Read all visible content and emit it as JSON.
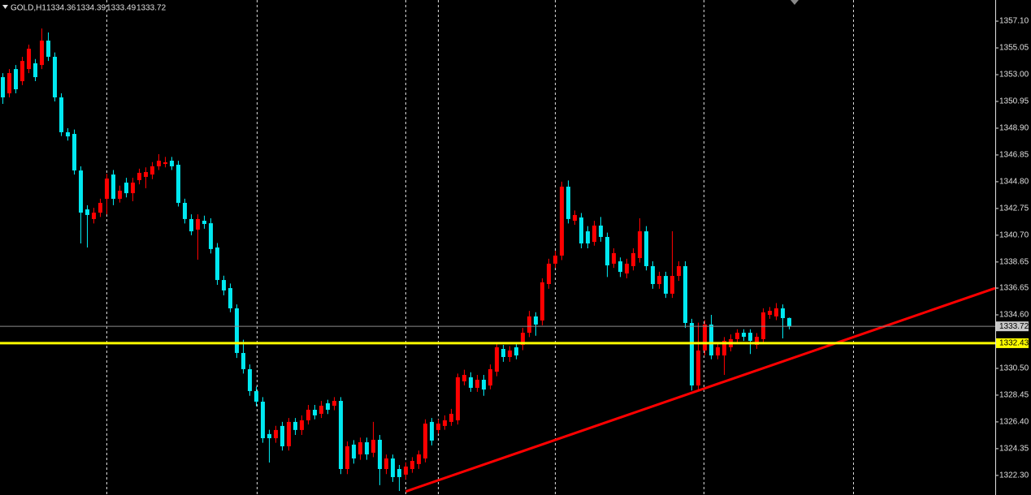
{
  "chart_data": {
    "type": "candlestick",
    "symbol": "GOLD,H1",
    "open": [
      1352.81,
      1351.57,
      1353.43,
      1352.5,
      1353.43,
      1353.87,
      1353.74,
      1355.61,
      1354.37,
      1351.26,
      1348.59,
      1348.46,
      1345.66,
      1342.68,
      1341.94,
      1342.43,
      1343.49,
      1345.35,
      1343.49,
      1344.73,
      1343.92,
      1344.92,
      1345.17,
      1345.35,
      1345.98,
      1346.16,
      1346.41,
      1346.1,
      1343.18,
      1341.94,
      1341.13,
      1341.81,
      1341.62,
      1339.76,
      1337.27,
      1336.65,
      1335.1,
      1331.68,
      1330.44,
      1328.76,
      1327.95,
      1325.47,
      1325.15,
      1326.09,
      1324.53,
      1326.4,
      1325.78,
      1326.52,
      1327.33,
      1327.02,
      1327.83,
      1327.64,
      1328.01,
      1322.79,
      1324.66,
      1323.91,
      1324.84,
      1324.04,
      1325.03,
      1322.79,
      1323.6,
      1322.79,
      1322.36,
      1322.79,
      1323.17,
      1323.6,
      1326.4,
      1325.78,
      1326.09,
      1326.4,
      1326.52,
      1329.51,
      1329.82,
      1329.01,
      1329.63,
      1329.19,
      1330.25,
      1331.99,
      1331.37,
      1332.12,
      1332.3,
      1333.23,
      1334.48,
      1334.17,
      1336.96,
      1338.52,
      1339.14,
      1344.42,
      1341.81,
      1342.06,
      1341.0,
      1340.19,
      1341.44,
      1340.57,
      1338.52,
      1338.7,
      1337.77,
      1338.33,
      1338.95,
      1341.0,
      1338.33,
      1336.96,
      1337.58,
      1336.22,
      1337.58,
      1338.33,
      1333.98,
      1329.19,
      1331.87,
      1333.86,
      1331.49,
      1331.49,
      1332.12,
      1332.74,
      1333.23,
      1333.23,
      1332.3,
      1332.74,
      1334.6,
      1334.48,
      1335.1,
      1334.36
    ],
    "high": [
      1353.12,
      1353.43,
      1353.74,
      1354.37,
      1355.3,
      1354.2,
      1356.54,
      1356.23,
      1354.7,
      1351.57,
      1348.9,
      1348.8,
      1345.98,
      1343.0,
      1342.8,
      1343.5,
      1345.4,
      1345.7,
      1344.5,
      1345.1,
      1345.1,
      1345.8,
      1345.9,
      1346.3,
      1346.91,
      1346.7,
      1346.7,
      1346.4,
      1343.5,
      1342.3,
      1342.3,
      1342.2,
      1342.0,
      1340.1,
      1337.6,
      1337.0,
      1335.4,
      1332.7,
      1330.8,
      1329.1,
      1328.3,
      1325.8,
      1326.1,
      1326.4,
      1326.7,
      1326.7,
      1326.9,
      1327.7,
      1327.7,
      1328.0,
      1328.1,
      1328.3,
      1328.3,
      1324.9,
      1325.0,
      1325.2,
      1325.2,
      1326.4,
      1325.4,
      1323.9,
      1323.9,
      1323.1,
      1323.3,
      1323.7,
      1324.2,
      1326.6,
      1326.7,
      1326.6,
      1326.9,
      1327.4,
      1330.1,
      1330.4,
      1330.2,
      1330.0,
      1330.0,
      1330.8,
      1332.5,
      1332.3,
      1332.2,
      1332.5,
      1333.6,
      1334.9,
      1334.8,
      1337.4,
      1338.9,
      1339.5,
      1344.8,
      1344.9,
      1342.6,
      1342.4,
      1341.4,
      1341.8,
      1342.1,
      1340.9,
      1339.7,
      1339.0,
      1338.9,
      1339.7,
      1342.0,
      1341.4,
      1338.7,
      1337.9,
      1337.9,
      1341.0,
      1338.7,
      1338.7,
      1334.3,
      1334.0,
      1334.2,
      1334.6,
      1332.5,
      1332.9,
      1333.1,
      1333.5,
      1333.5,
      1333.5,
      1333.2,
      1335.1,
      1335.2,
      1335.5,
      1335.4,
      1334.39
    ],
    "low": [
      1350.76,
      1351.26,
      1351.57,
      1352.2,
      1353.12,
      1352.5,
      1353.43,
      1354.05,
      1350.95,
      1348.3,
      1347.95,
      1345.35,
      1340.07,
      1339.76,
      1341.6,
      1342.1,
      1342.3,
      1343.0,
      1343.2,
      1343.6,
      1343.3,
      1344.6,
      1344.3,
      1345.0,
      1345.7,
      1345.9,
      1345.7,
      1342.9,
      1341.6,
      1340.7,
      1338.83,
      1341.2,
      1339.3,
      1336.9,
      1336.1,
      1334.8,
      1331.3,
      1330.1,
      1328.4,
      1327.6,
      1324.8,
      1323.29,
      1324.8,
      1324.2,
      1324.2,
      1325.4,
      1325.4,
      1326.2,
      1326.6,
      1326.7,
      1327.0,
      1327.3,
      1322.4,
      1322.4,
      1323.2,
      1323.5,
      1323.5,
      1323.7,
      1321.55,
      1322.4,
      1321.8,
      1321.11,
      1322.0,
      1322.5,
      1322.8,
      1323.3,
      1324.6,
      1325.5,
      1325.8,
      1326.1,
      1326.2,
      1329.2,
      1328.7,
      1328.7,
      1328.4,
      1328.9,
      1329.9,
      1331.0,
      1331.0,
      1331.2,
      1331.9,
      1332.9,
      1333.0,
      1333.8,
      1336.6,
      1338.2,
      1338.8,
      1341.6,
      1341.5,
      1339.7,
      1339.7,
      1339.9,
      1340.2,
      1337.5,
      1338.2,
      1337.5,
      1337.4,
      1338.0,
      1338.6,
      1338.0,
      1336.6,
      1336.6,
      1335.9,
      1335.9,
      1337.2,
      1333.6,
      1328.8,
      1328.8,
      1331.5,
      1331.2,
      1331.2,
      1330.0,
      1331.8,
      1332.4,
      1332.6,
      1331.6,
      1332.0,
      1332.4,
      1334.3,
      1334.2,
      1332.8,
      1333.49
    ],
    "close": [
      1351.26,
      1353.12,
      1351.88,
      1354.05,
      1354.99,
      1352.81,
      1355.61,
      1354.37,
      1351.26,
      1348.59,
      1348.27,
      1345.66,
      1342.43,
      1342.25,
      1342.43,
      1343.18,
      1345.04,
      1343.49,
      1344.11,
      1343.92,
      1344.73,
      1345.48,
      1345.54,
      1345.98,
      1346.41,
      1346.29,
      1345.98,
      1343.18,
      1341.94,
      1341.0,
      1341.94,
      1341.56,
      1339.64,
      1337.27,
      1336.47,
      1335.1,
      1331.68,
      1330.44,
      1328.76,
      1327.95,
      1325.15,
      1325.15,
      1325.78,
      1324.53,
      1326.4,
      1325.78,
      1326.52,
      1327.33,
      1326.9,
      1327.64,
      1327.33,
      1328.01,
      1322.79,
      1324.53,
      1323.6,
      1324.84,
      1323.91,
      1325.03,
      1322.79,
      1323.6,
      1322.17,
      1322.17,
      1322.98,
      1323.41,
      1323.91,
      1326.27,
      1324.97,
      1326.27,
      1326.52,
      1327.02,
      1329.82,
      1330.0,
      1329.01,
      1329.63,
      1328.88,
      1330.44,
      1332.12,
      1331.37,
      1331.87,
      1331.49,
      1333.23,
      1334.48,
      1333.86,
      1337.09,
      1338.52,
      1339.14,
      1344.42,
      1341.94,
      1342.25,
      1340.07,
      1340.07,
      1341.44,
      1340.57,
      1338.39,
      1339.33,
      1337.89,
      1338.52,
      1339.33,
      1341.0,
      1338.33,
      1336.96,
      1337.58,
      1336.22,
      1337.58,
      1338.33,
      1333.98,
      1329.19,
      1331.87,
      1333.86,
      1331.49,
      1332.12,
      1332.61,
      1332.74,
      1333.23,
      1332.92,
      1332.61,
      1332.92,
      1334.79,
      1334.91,
      1335.1,
      1334.35,
      1333.72
    ],
    "up_color": "#ff0000",
    "down_color": "#00e8f0",
    "ylim": [
      1320.8,
      1358.72
    ],
    "yticks": [
      {
        "value": 1357.1,
        "label": "1357.10"
      },
      1355.05,
      {
        "value": 1353,
        "label": "1353.00"
      },
      1350.95,
      {
        "value": 1348.9,
        "label": "1348.90"
      },
      1346.85,
      {
        "value": 1344.8,
        "label": "1344.80"
      },
      1342.75,
      {
        "value": 1340.7,
        "label": "1340.70"
      },
      1338.65,
      1336.65,
      {
        "value": 1334.6,
        "label": "1334.60"
      },
      {
        "value": 1330.5,
        "label": "1330.50"
      },
      1328.45,
      {
        "value": 1326.4,
        "label": "1326.40"
      },
      1324.35,
      {
        "value": 1322.3,
        "label": "1322.30"
      }
    ],
    "level": 1332.43,
    "level_color": "#ffff00",
    "trendline": {
      "points": [
        [
          62,
          1321.07
        ],
        [
          107,
          1328.8
        ]
      ],
      "color": "#ff0000"
    }
  }
}
